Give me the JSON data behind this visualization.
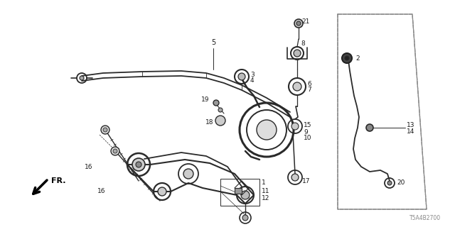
{
  "diagram_code": "T5A4B2700",
  "background_color": "#ffffff",
  "line_color": "#2a2a2a",
  "text_color": "#1a1a1a",
  "fig_width": 6.4,
  "fig_height": 3.2,
  "dpi": 100
}
